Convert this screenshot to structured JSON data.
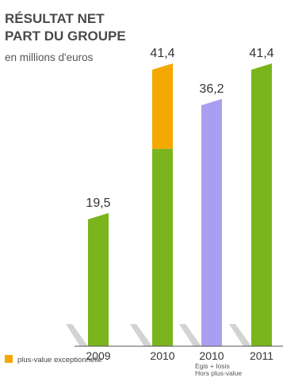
{
  "chart_data": {
    "type": "bar",
    "title_lines": [
      "RÉSULTAT NET",
      "PART DU GROUPE"
    ],
    "subtitle": "en millions d'euros",
    "categories": [
      "2009",
      "2010",
      "2010",
      "2011"
    ],
    "category_notes": [
      "",
      "",
      "Egis + Iosis\nHors plus-value",
      ""
    ],
    "category_note_lines": [
      [],
      [],
      [
        "Egis + Iosis",
        "Hors plus-value"
      ],
      []
    ],
    "totals": [
      19.5,
      41.4,
      36.2,
      41.4
    ],
    "value_labels": [
      "19,5",
      "41,4",
      "36,2",
      "41,4"
    ],
    "series": [
      {
        "name": "",
        "values": [
          19.5,
          28.9,
          0,
          41.4
        ],
        "color": "#7ab51d"
      },
      {
        "name": "plus-value exceptionnelle",
        "values": [
          0,
          12.5,
          0,
          0
        ],
        "color": "#f5a800"
      },
      {
        "name": "",
        "values": [
          0,
          0,
          36.2,
          0
        ],
        "color": "#a99ff0"
      }
    ],
    "legend": {
      "label": "plus-value exceptionnelle",
      "color": "#f5a800",
      "position": "bottom-left"
    },
    "ylim": [
      0,
      41.4
    ],
    "grid": false
  }
}
